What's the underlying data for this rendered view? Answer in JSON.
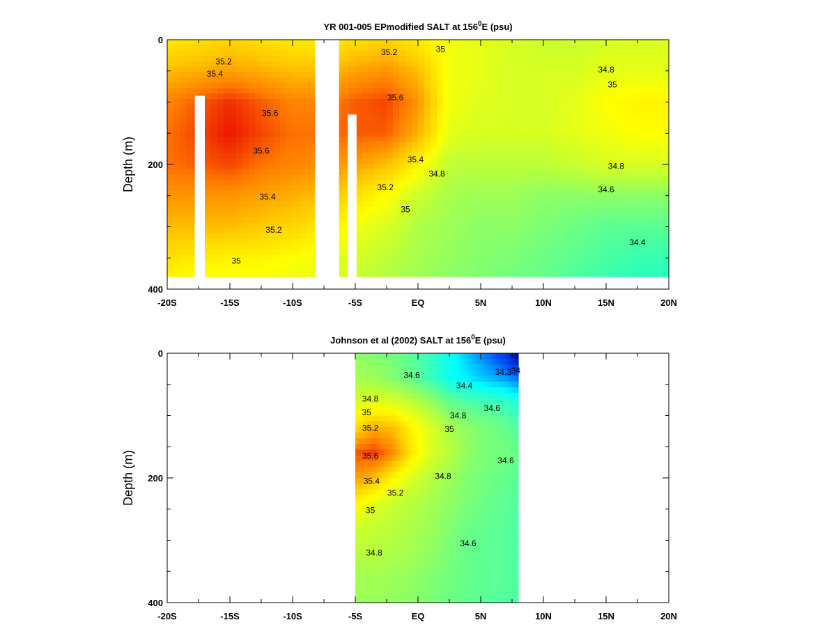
{
  "chart_data": [
    {
      "type": "heatmap",
      "title": "YR 001-005 EPmodified SALT at 156",
      "title_sup": "0",
      "title_tail": "E (psu)",
      "ylabel": "Depth (m)",
      "xlim": [
        -20,
        20
      ],
      "ylim": [
        0,
        400
      ],
      "y_inverted": true,
      "x_ticks": [
        -20,
        -15,
        -10,
        -5,
        0,
        5,
        10,
        15,
        20
      ],
      "x_tick_labels": [
        "-20S",
        "-15S",
        "-10S",
        "-5S",
        "EQ",
        "5N",
        "10N",
        "15N",
        "20N"
      ],
      "y_ticks": [
        0,
        200,
        400
      ],
      "y_tick_labels": [
        "0",
        "200",
        "400"
      ],
      "colorscale": [
        "#00ffd8",
        "#60ff90",
        "#b8ff3c",
        "#ffff00",
        "#ffc800",
        "#ff7a00",
        "#e80000"
      ],
      "value_range": [
        34.2,
        35.8
      ],
      "data_extent": {
        "x": [
          -20,
          20
        ],
        "depth": [
          0,
          380
        ]
      },
      "no_data_columns": [
        [
          -8.2,
          -6.3
        ]
      ],
      "no_data_bars": [
        {
          "x": [
            -17.8,
            -17.0
          ],
          "depth": [
            90,
            380
          ]
        },
        {
          "x": [
            -5.6,
            -4.9
          ],
          "depth": [
            120,
            380
          ]
        }
      ],
      "x": [
        -20,
        -17.5,
        -15,
        -12.5,
        -10,
        -7.5,
        -5,
        -2.5,
        0,
        2.5,
        5,
        7.5,
        10,
        12.5,
        15,
        17.5,
        20
      ],
      "depth": [
        0,
        50,
        100,
        150,
        200,
        250,
        300,
        350,
        380
      ],
      "salinity": [
        [
          35.1,
          35.15,
          35.2,
          35.15,
          35.1,
          35.1,
          35.15,
          35.2,
          35.1,
          34.95,
          34.9,
          34.85,
          34.8,
          34.8,
          34.85,
          34.85,
          34.85
        ],
        [
          35.3,
          35.35,
          35.4,
          35.35,
          35.3,
          35.3,
          35.4,
          35.45,
          35.3,
          34.95,
          34.9,
          34.85,
          34.85,
          34.85,
          34.9,
          34.9,
          34.9
        ],
        [
          35.5,
          35.6,
          35.7,
          35.6,
          35.5,
          35.5,
          35.6,
          35.65,
          35.45,
          34.95,
          34.88,
          34.85,
          34.85,
          34.9,
          35.0,
          35.05,
          35.05
        ],
        [
          35.55,
          35.65,
          35.75,
          35.65,
          35.55,
          35.55,
          35.6,
          35.6,
          35.35,
          34.9,
          34.85,
          34.85,
          34.85,
          34.9,
          34.95,
          35.0,
          35.0
        ],
        [
          35.55,
          35.6,
          35.65,
          35.55,
          35.5,
          35.45,
          35.4,
          35.3,
          35.05,
          34.75,
          34.75,
          34.75,
          34.75,
          34.8,
          34.85,
          34.85,
          34.85
        ],
        [
          35.45,
          35.45,
          35.45,
          35.4,
          35.35,
          35.3,
          35.15,
          35.0,
          34.8,
          34.68,
          34.65,
          34.65,
          34.6,
          34.6,
          34.6,
          34.6,
          34.6
        ],
        [
          35.3,
          35.3,
          35.3,
          35.25,
          35.2,
          35.1,
          34.95,
          34.85,
          34.7,
          34.65,
          34.6,
          34.6,
          34.55,
          34.5,
          34.45,
          34.45,
          34.45
        ],
        [
          35.15,
          35.1,
          35.05,
          35.05,
          35.0,
          34.95,
          34.85,
          34.75,
          34.68,
          34.62,
          34.58,
          34.55,
          34.5,
          34.45,
          34.4,
          34.35,
          34.35
        ],
        [
          35.05,
          35.0,
          34.98,
          34.98,
          34.95,
          34.9,
          34.8,
          34.72,
          34.66,
          34.6,
          34.56,
          34.52,
          34.48,
          34.42,
          34.36,
          34.32,
          34.3
        ]
      ],
      "contour_labels": [
        {
          "text": "35.2",
          "x": -15.5,
          "depth": 35
        },
        {
          "text": "35.4",
          "x": -16.2,
          "depth": 55
        },
        {
          "text": "35.6",
          "x": -11.8,
          "depth": 118
        },
        {
          "text": "35.6",
          "x": -12.5,
          "depth": 178
        },
        {
          "text": "35.4",
          "x": -12.0,
          "depth": 252
        },
        {
          "text": "35.2",
          "x": -11.5,
          "depth": 305
        },
        {
          "text": "35",
          "x": -14.5,
          "depth": 355
        },
        {
          "text": "35.2",
          "x": -2.3,
          "depth": 20
        },
        {
          "text": "35",
          "x": 1.8,
          "depth": 15
        },
        {
          "text": "35.6",
          "x": -1.8,
          "depth": 93
        },
        {
          "text": "35.4",
          "x": -0.2,
          "depth": 192
        },
        {
          "text": "34.8",
          "x": 1.5,
          "depth": 215
        },
        {
          "text": "35.2",
          "x": -2.6,
          "depth": 237
        },
        {
          "text": "35",
          "x": -1.0,
          "depth": 272
        },
        {
          "text": "34.8",
          "x": 15.0,
          "depth": 48
        },
        {
          "text": "35",
          "x": 15.5,
          "depth": 72
        },
        {
          "text": "34.8",
          "x": 15.8,
          "depth": 203
        },
        {
          "text": "34.6",
          "x": 15.0,
          "depth": 240
        },
        {
          "text": "34.4",
          "x": 17.5,
          "depth": 325
        }
      ]
    },
    {
      "type": "heatmap",
      "title": "Johnson et al (2002) SALT at 156",
      "title_sup": "0",
      "title_tail": "E (psu)",
      "ylabel": "Depth (m)",
      "xlim": [
        -20,
        20
      ],
      "ylim": [
        0,
        400
      ],
      "y_inverted": true,
      "x_ticks": [
        -20,
        -15,
        -10,
        -5,
        0,
        5,
        10,
        15,
        20
      ],
      "x_tick_labels": [
        "-20S",
        "-15S",
        "-10S",
        "-5S",
        "EQ",
        "5N",
        "10N",
        "15N",
        "20N"
      ],
      "y_ticks": [
        0,
        200,
        400
      ],
      "y_tick_labels": [
        "0",
        "200",
        "400"
      ],
      "colorscale": [
        "#00008c",
        "#0050ff",
        "#00ffff",
        "#60ff90",
        "#b8ff3c",
        "#ffff00",
        "#ffc800",
        "#ff7a00",
        "#e80000"
      ],
      "value_range": [
        34.0,
        35.7
      ],
      "data_extent": {
        "x": [
          -5,
          8
        ],
        "depth": [
          0,
          400
        ]
      },
      "x": [
        -5,
        -3.5,
        -2,
        -0.5,
        1,
        2.5,
        4,
        5.5,
        7,
        8
      ],
      "depth": [
        0,
        40,
        80,
        120,
        160,
        200,
        240,
        280,
        320,
        360,
        400
      ],
      "salinity": [
        [
          34.75,
          34.72,
          34.68,
          34.62,
          34.55,
          34.45,
          34.35,
          34.25,
          34.15,
          34.0
        ],
        [
          34.8,
          34.78,
          34.72,
          34.65,
          34.55,
          34.45,
          34.4,
          34.35,
          34.3,
          34.25
        ],
        [
          34.95,
          34.98,
          34.95,
          34.88,
          34.78,
          34.65,
          34.6,
          34.58,
          34.55,
          34.5
        ],
        [
          35.2,
          35.35,
          35.3,
          35.1,
          34.95,
          34.82,
          34.75,
          34.7,
          34.65,
          34.6
        ],
        [
          35.55,
          35.6,
          35.45,
          35.15,
          34.95,
          34.85,
          34.75,
          34.7,
          34.68,
          34.65
        ],
        [
          35.4,
          35.3,
          35.1,
          34.95,
          34.85,
          34.78,
          34.72,
          34.68,
          34.65,
          34.62
        ],
        [
          35.1,
          34.98,
          34.9,
          34.85,
          34.8,
          34.75,
          34.7,
          34.66,
          34.63,
          34.6
        ],
        [
          34.92,
          34.88,
          34.85,
          34.82,
          34.78,
          34.72,
          34.66,
          34.64,
          34.62,
          34.6
        ],
        [
          34.85,
          34.85,
          34.82,
          34.8,
          34.75,
          34.7,
          34.65,
          34.63,
          34.62,
          34.6
        ],
        [
          34.8,
          34.8,
          34.78,
          34.76,
          34.72,
          34.68,
          34.65,
          34.63,
          34.62,
          34.6
        ],
        [
          34.78,
          34.78,
          34.76,
          34.74,
          34.7,
          34.67,
          34.64,
          34.62,
          34.61,
          34.6
        ]
      ],
      "contour_labels": [
        {
          "text": "34.6",
          "x": -0.5,
          "depth": 35
        },
        {
          "text": "34.4",
          "x": 3.7,
          "depth": 52
        },
        {
          "text": "34.3",
          "x": 6.8,
          "depth": 30
        },
        {
          "text": "34",
          "x": 7.8,
          "depth": 28
        },
        {
          "text": "34.8",
          "x": -3.8,
          "depth": 73
        },
        {
          "text": "35",
          "x": -4.1,
          "depth": 95
        },
        {
          "text": "34.8",
          "x": 3.2,
          "depth": 100
        },
        {
          "text": "34.6",
          "x": 5.9,
          "depth": 88
        },
        {
          "text": "35.2",
          "x": -3.8,
          "depth": 120
        },
        {
          "text": "35",
          "x": 2.5,
          "depth": 122
        },
        {
          "text": "35.6",
          "x": -3.8,
          "depth": 165
        },
        {
          "text": "34.6",
          "x": 7.0,
          "depth": 172
        },
        {
          "text": "34.8",
          "x": 2.0,
          "depth": 197
        },
        {
          "text": "35.4",
          "x": -3.7,
          "depth": 205
        },
        {
          "text": "35.2",
          "x": -1.8,
          "depth": 224
        },
        {
          "text": "35",
          "x": -3.8,
          "depth": 252
        },
        {
          "text": "34.6",
          "x": 4.0,
          "depth": 305
        },
        {
          "text": "34.8",
          "x": -3.5,
          "depth": 320
        }
      ]
    }
  ]
}
